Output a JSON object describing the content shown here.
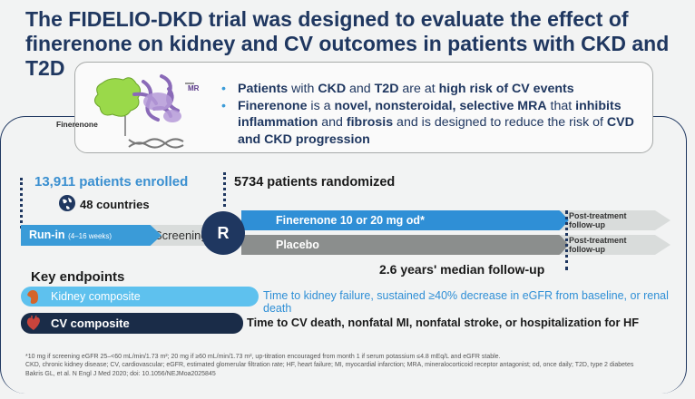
{
  "title": "The FIDELIO-DKD trial was designed to evaluate the effect of finerenone on kidney and CV outcomes in patients with CKD and T2D",
  "molecule": {
    "finerenone_label": "Finerenone",
    "mr_label": "MR"
  },
  "bullets": [
    {
      "parts": [
        "Patients",
        " with ",
        "CKD",
        " and ",
        "T2D",
        " are at ",
        "high risk of CV events"
      ]
    },
    {
      "parts": [
        "Finerenone",
        " is a ",
        "novel, nonsteroidal, selective MRA",
        " that ",
        "inhibits inflammation",
        " and ",
        "fibrosis",
        " and is designed to reduce the risk of ",
        "CVD and CKD progression"
      ]
    }
  ],
  "enrolled": "13,911 patients enrolled",
  "countries": "48 countries",
  "randomized": "5734 patients randomized",
  "runin": {
    "label": "Run-in",
    "sub": "(4–16 weeks)"
  },
  "screening": "Screening",
  "r_label": "R",
  "arms": {
    "finerenone": "Finerenone 10 or 20 mg od*",
    "placebo": "Placebo",
    "post_line1": "Post-treatment",
    "post_line2": "follow-up"
  },
  "median_followup": "2.6 years' median follow-up",
  "key_endpoints": "Key endpoints",
  "kidney": {
    "label": "Kidney composite",
    "text": "Time to kidney failure, sustained ≥40% decrease in eGFR from baseline, or renal death"
  },
  "cv": {
    "label": "CV composite",
    "text": "Time to CV death, nonfatal MI, nonfatal stroke, or hospitalization for HF"
  },
  "footnotes": [
    "*10 mg if screening eGFR 25–<60 mL/min/1.73 m²; 20 mg if ≥60 mL/min/1.73 m², up-titration encouraged from month 1 if serum potassium ≤4.8 mEq/L and eGFR stable.",
    "CKD, chronic kidney disease; CV, cardiovascular; eGFR, estimated glomerular filtration rate; HF, heart failure; MI, myocardial infarction; MRA, mineralocorticoid receptor antagonist; od, once daily; T2D, type 2 diabetes",
    "Bakris GL, et al. N Engl J Med 2020; doi: 10.1056/NEJMoa2025845"
  ],
  "colors": {
    "navy": "#1f3760",
    "blue": "#2f8fd6",
    "light_blue": "#5ec1ee",
    "grey": "#8b8e8d"
  },
  "icons": [
    "molecule-illustration",
    "globe-icon",
    "kidney-icon",
    "heart-icon"
  ]
}
